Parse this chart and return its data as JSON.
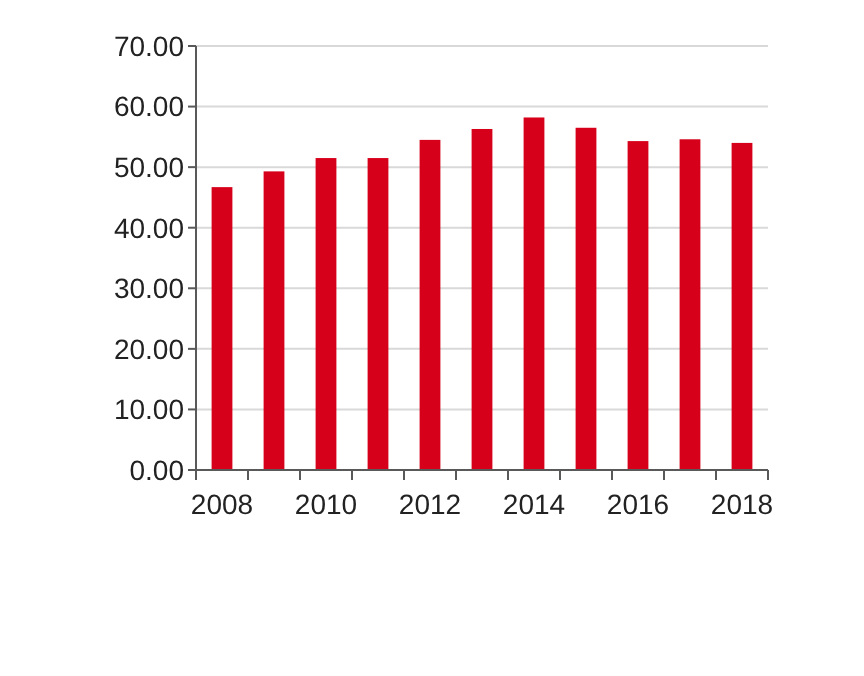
{
  "chart_data": {
    "type": "bar",
    "categories": [
      "2008",
      null,
      "2010",
      null,
      "2012",
      null,
      "2014",
      null,
      "2016",
      null,
      "2018"
    ],
    "values": [
      46.7,
      49.3,
      51.5,
      51.5,
      54.5,
      56.3,
      58.2,
      56.5,
      54.3,
      54.6,
      54.0
    ],
    "color": "#d7001a",
    "ylim": [
      0,
      70
    ],
    "yticks": [
      {
        "value": 0,
        "label": "0.00"
      },
      {
        "value": 10,
        "label": "10.00"
      },
      {
        "value": 20,
        "label": "20.00"
      },
      {
        "value": 30,
        "label": "30.00"
      },
      {
        "value": 40,
        "label": "40.00"
      },
      {
        "value": 50,
        "label": "50.00"
      },
      {
        "value": 60,
        "label": "60.00"
      },
      {
        "value": 70,
        "label": "70.00"
      }
    ],
    "grid": "y"
  }
}
